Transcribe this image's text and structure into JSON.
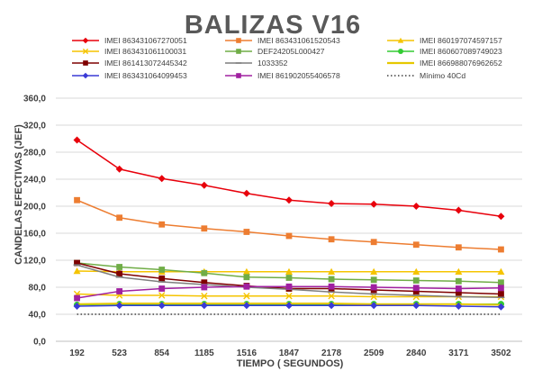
{
  "chart_data": {
    "type": "line",
    "title": "BALIZAS V16",
    "xlabel": "TIEMPO ( SEGUNDOS)",
    "ylabel": "CANDELAS EFECTIVAS (JEF)",
    "ylim": [
      0,
      360
    ],
    "yticks": [
      0,
      40,
      80,
      120,
      160,
      200,
      240,
      280,
      320,
      360
    ],
    "ytick_labels": [
      "0,0",
      "40,0",
      "80,0",
      "120,0",
      "160,0",
      "200,0",
      "240,0",
      "280,0",
      "320,0",
      "360,0"
    ],
    "x": [
      "192",
      "523",
      "854",
      "1185",
      "1516",
      "1847",
      "2178",
      "2509",
      "2840",
      "3171",
      "3502"
    ],
    "grid": "horizontal",
    "legend_position": "top",
    "series": [
      {
        "name": "IMEI 863431067270051",
        "color": "#e8000b",
        "marker": "diamond",
        "values": [
          298,
          255,
          241,
          231,
          219,
          209,
          204,
          203,
          200,
          194,
          185
        ]
      },
      {
        "name": "IMEI 863431061520543",
        "color": "#ed7d31",
        "marker": "square",
        "values": [
          209,
          183,
          173,
          167,
          162,
          156,
          151,
          147,
          143,
          139,
          136
        ]
      },
      {
        "name": "IMEI 860197074597157",
        "color": "#f5c400",
        "marker": "triangle",
        "values": [
          104,
          103,
          103,
          103,
          103,
          103,
          103,
          103,
          103,
          103,
          103
        ]
      },
      {
        "name": "IMEI 863431061100031",
        "color": "#f5c400",
        "marker": "x",
        "values": [
          70,
          68,
          68,
          67,
          67,
          67,
          67,
          66,
          66,
          66,
          66
        ]
      },
      {
        "name": "DEF24205L000427",
        "color": "#70ad47",
        "marker": "square",
        "values": [
          116,
          110,
          106,
          101,
          95,
          94,
          92,
          91,
          90,
          89,
          87
        ]
      },
      {
        "name": "IMEI 860607089749023",
        "color": "#33cc33",
        "marker": "circle",
        "values": [
          54,
          55,
          55,
          55,
          55,
          55,
          55,
          55,
          55,
          55,
          55
        ]
      },
      {
        "name": "IMEI 861413072445342",
        "color": "#7f0000",
        "marker": "square",
        "values": [
          116,
          100,
          93,
          87,
          82,
          78,
          78,
          76,
          74,
          72,
          70
        ]
      },
      {
        "name": "1033352",
        "color": "#7f7f7f",
        "marker": "dash",
        "values": [
          113,
          95,
          88,
          84,
          80,
          77,
          73,
          70,
          68,
          66,
          65
        ]
      },
      {
        "name": "IMEI 866988076962652",
        "color": "#e6c800",
        "marker": "none",
        "values": [
          55,
          56,
          56,
          56,
          56,
          56,
          56,
          55,
          55,
          55,
          54
        ]
      },
      {
        "name": "IMEI 863431064099453",
        "color": "#3a3ad6",
        "marker": "diamond",
        "values": [
          52,
          53,
          53,
          53,
          53,
          53,
          53,
          53,
          53,
          52,
          51
        ]
      },
      {
        "name": "IMEI 861902055406578",
        "color": "#a020a0",
        "marker": "square",
        "values": [
          64,
          74,
          78,
          80,
          81,
          81,
          81,
          80,
          79,
          78,
          79
        ]
      },
      {
        "name": "Mínimo 40Cd",
        "color": "#404040",
        "marker": "none",
        "dash": "dotted",
        "values": [
          40,
          40,
          40,
          40,
          40,
          40,
          40,
          40,
          40,
          40,
          40
        ]
      }
    ]
  }
}
